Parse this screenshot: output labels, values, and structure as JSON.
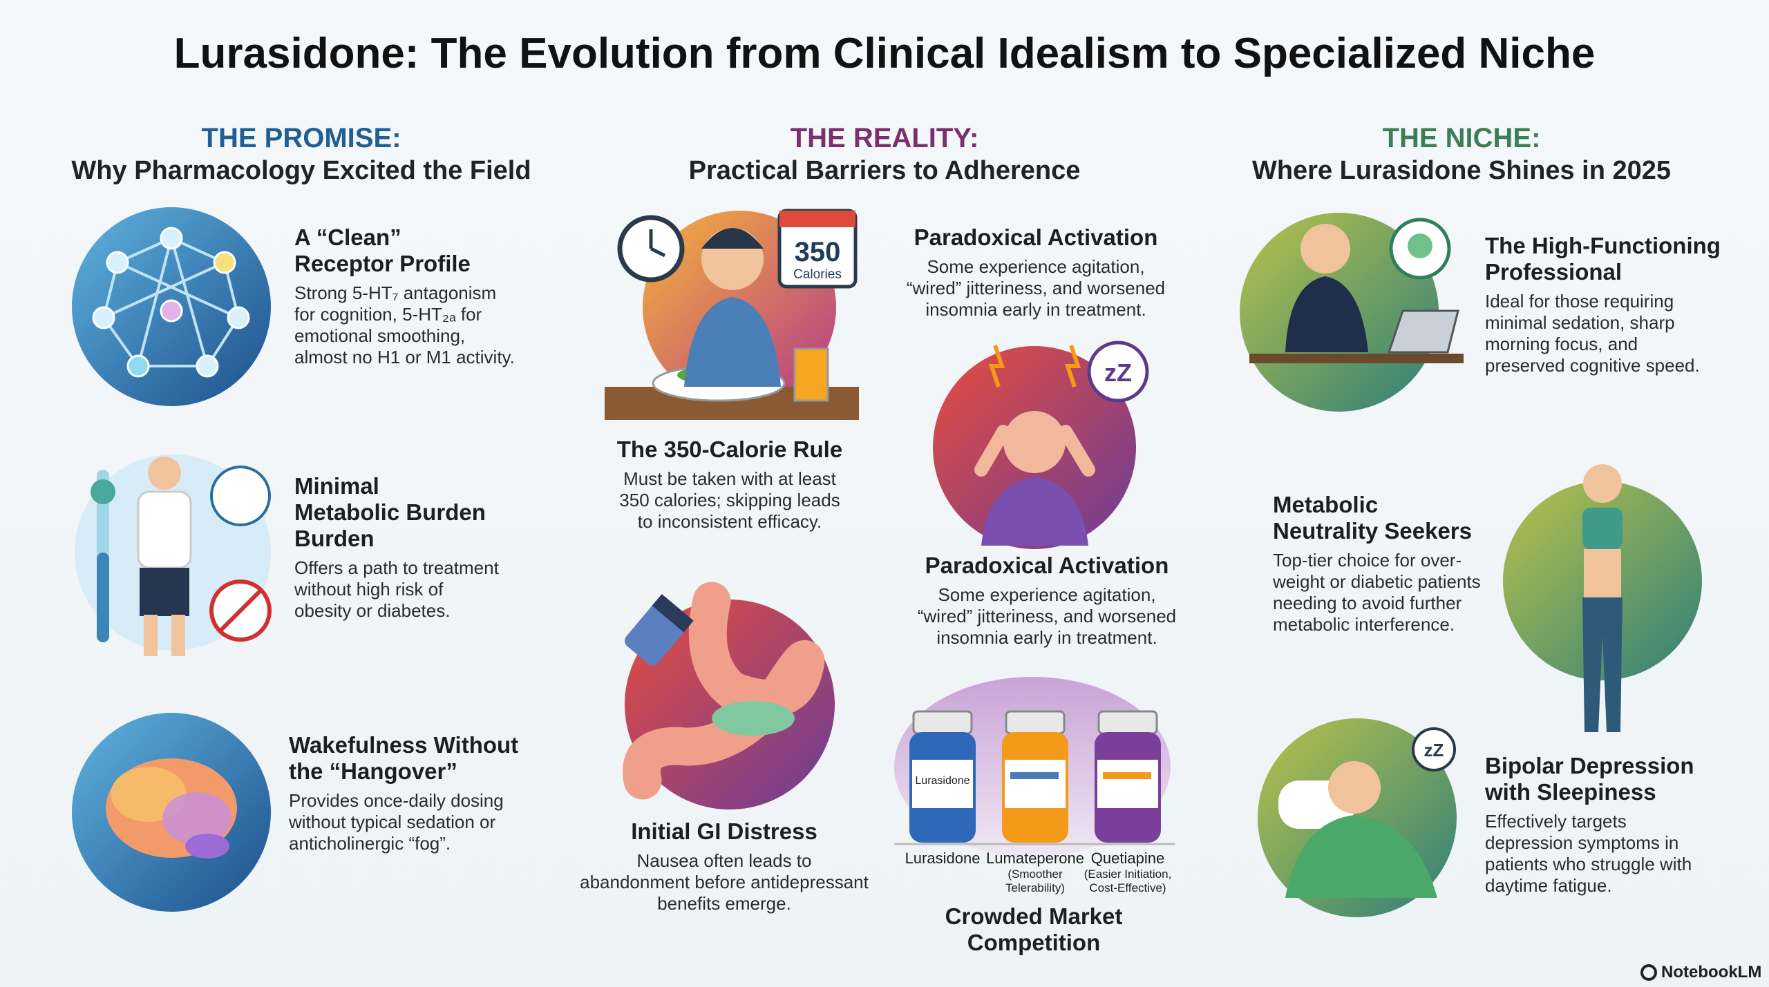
{
  "title": "Lurasidone: The Evolution from Clinical Idealism to Specialized Niche",
  "columns": [
    {
      "heading": "THE PROMISE:",
      "subheading": "Why Pharmacology Excited the Field",
      "items": [
        {
          "title": [
            "A “Clean”",
            "Receptor Profile"
          ],
          "body": [
            "Strong 5-HT₇ antagonism",
            "for cognition, 5-HT₂ₐ for",
            "emotional smoothing,",
            "almost no H1 or M1 activity."
          ]
        },
        {
          "title": [
            "Minimal",
            "Metabolic Burden",
            "Burden"
          ],
          "body": [
            "Offers a path to treatment",
            "without high risk of",
            "obesity or diabetes."
          ]
        },
        {
          "title": [
            "Wakefulness Without",
            "the “Hangover”"
          ],
          "body": [
            "Provides once-daily dosing",
            "without typical sedation or",
            "anticholinergic “fog”."
          ]
        }
      ]
    },
    {
      "heading": "THE REALITY:",
      "subheading": "Practical Barriers to Adherence",
      "items": [
        {
          "title": [
            "The 350-Calorie Rule"
          ],
          "body": [
            "Must be taken with at least",
            "350 calories; skipping leads",
            "to inconsistent efficacy."
          ]
        },
        {
          "title": [
            "Paradoxical Activation"
          ],
          "body": [
            "Some experience agitation,",
            "“wired” jitteriness, and worsened",
            "insomnia early in treatment."
          ]
        },
        {
          "title": [
            "Paradoxical Activation"
          ],
          "body": [
            "Some experience agitation,",
            "“wired” jitteriness, and worsened",
            "insomnia early in treatment."
          ]
        },
        {
          "title": [
            "Initial GI Distress"
          ],
          "body": [
            "Nausea often leads to",
            "abandonment before antidepressant",
            "benefits emerge."
          ]
        },
        {
          "title": [
            "Crowded Market",
            "Competition"
          ],
          "body": []
        }
      ]
    },
    {
      "heading": "THE NICHE:",
      "subheading": "Where Lurasidone Shines in 2025",
      "items": [
        {
          "title": [
            "The High-Functioning",
            "Professional"
          ],
          "body": [
            "Ideal for those requiring",
            "minimal sedation, sharp",
            "morning focus, and",
            "preserved cognitive speed."
          ]
        },
        {
          "title": [
            "Metabolic",
            "Neutrality Seekers"
          ],
          "body": [
            "Top-tier choice for over-",
            "weight or diabetic patients",
            "needing to avoid further",
            "metabolic interference."
          ]
        },
        {
          "title": [
            "Bipolar Depression",
            "with Sleepiness"
          ],
          "body": [
            "Effectively targets",
            "depression symptoms in",
            "patients who struggle with",
            "daytime fatigue."
          ]
        }
      ]
    }
  ],
  "calendar": {
    "number": "350",
    "unit": "Calories"
  },
  "bottle_label": "Lurasidone",
  "bottles": [
    {
      "name": "Lurasidone",
      "note": []
    },
    {
      "name": "Lumateperone",
      "note": [
        "(Smoother",
        "Telerability)"
      ]
    },
    {
      "name": "Quetiapine",
      "note": [
        "(Easier Initiation,",
        "Cost-Effective)"
      ]
    }
  ],
  "brand": "NotebookLM"
}
